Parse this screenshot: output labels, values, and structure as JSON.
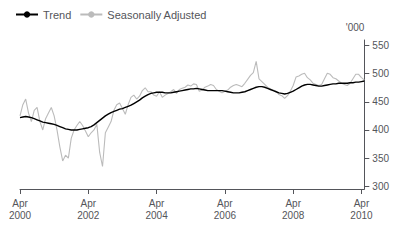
{
  "chart_data": {
    "type": "line",
    "ylabel": "'000",
    "categories": [
      "Apr\n2000",
      null,
      null,
      null,
      null,
      null,
      null,
      null,
      null,
      null,
      null,
      null,
      null,
      null,
      null,
      null,
      null,
      null,
      null,
      null,
      null,
      null,
      null,
      null,
      "Apr\n2002",
      null,
      null,
      null,
      null,
      null,
      null,
      null,
      null,
      null,
      null,
      null,
      null,
      null,
      null,
      null,
      null,
      null,
      null,
      null,
      null,
      null,
      null,
      null,
      "Apr\n2004",
      null,
      null,
      null,
      null,
      null,
      null,
      null,
      null,
      null,
      null,
      null,
      null,
      null,
      null,
      null,
      null,
      null,
      null,
      null,
      null,
      null,
      null,
      null,
      "Apr\n2006",
      null,
      null,
      null,
      null,
      null,
      null,
      null,
      null,
      null,
      null,
      null,
      null,
      null,
      null,
      null,
      null,
      null,
      null,
      null,
      null,
      null,
      null,
      null,
      "Apr\n2008",
      null,
      null,
      null,
      null,
      null,
      null,
      null,
      null,
      null,
      null,
      null,
      null,
      null,
      null,
      null,
      null,
      null,
      null,
      null,
      null,
      null,
      null,
      null,
      "Apr\n2010",
      null
    ],
    "series": [
      {
        "name": "Trend",
        "color": "#000000",
        "values": [
          422,
          423,
          424,
          423,
          422,
          420,
          418,
          416,
          414,
          413,
          412,
          411,
          410,
          408,
          406,
          404,
          402,
          401,
          400,
          400,
          400,
          401,
          402,
          403,
          404,
          406,
          409,
          413,
          417,
          421,
          425,
          428,
          431,
          433,
          435,
          437,
          438,
          440,
          442,
          444,
          447,
          450,
          453,
          457,
          460,
          463,
          465,
          466,
          467,
          467,
          467,
          466,
          466,
          466,
          467,
          468,
          469,
          470,
          471,
          472,
          473,
          473,
          474,
          473,
          472,
          471,
          470,
          470,
          470,
          470,
          470,
          470,
          469,
          468,
          467,
          466,
          466,
          466,
          467,
          468,
          470,
          472,
          474,
          476,
          477,
          477,
          476,
          474,
          472,
          470,
          468,
          466,
          465,
          464,
          465,
          467,
          469,
          472,
          475,
          478,
          480,
          481,
          481,
          480,
          479,
          478,
          478,
          479,
          480,
          481,
          482,
          482,
          483,
          483,
          483,
          483,
          484,
          484,
          485,
          485,
          486,
          487
        ]
      },
      {
        "name": "Seasonally Adjusted",
        "color": "#bbbbbb",
        "values": [
          425,
          445,
          455,
          430,
          415,
          435,
          440,
          415,
          400,
          420,
          430,
          440,
          425,
          400,
          370,
          345,
          355,
          350,
          385,
          400,
          408,
          415,
          408,
          398,
          388,
          395,
          400,
          410,
          360,
          335,
          395,
          405,
          415,
          435,
          445,
          448,
          438,
          428,
          445,
          458,
          462,
          455,
          460,
          470,
          475,
          468,
          468,
          462,
          460,
          468,
          458,
          462,
          465,
          468,
          472,
          465,
          472,
          474,
          476,
          480,
          478,
          482,
          481,
          469,
          471,
          476,
          478,
          481,
          479,
          472,
          469,
          466,
          469,
          471,
          476,
          479,
          481,
          479,
          477,
          483,
          490,
          497,
          502,
          522,
          491,
          486,
          481,
          476,
          473,
          471,
          469,
          463,
          461,
          456,
          461,
          469,
          479,
          494,
          496,
          499,
          501,
          493,
          489,
          483,
          481,
          479,
          481,
          491,
          501,
          499,
          493,
          491,
          487,
          483,
          481,
          479,
          483,
          491,
          499,
          499,
          493,
          489
        ]
      }
    ],
    "ylim": [
      295,
      560
    ],
    "yticks": [
      300,
      350,
      400,
      450,
      500,
      550
    ],
    "grid": false,
    "legend": "upper left"
  }
}
